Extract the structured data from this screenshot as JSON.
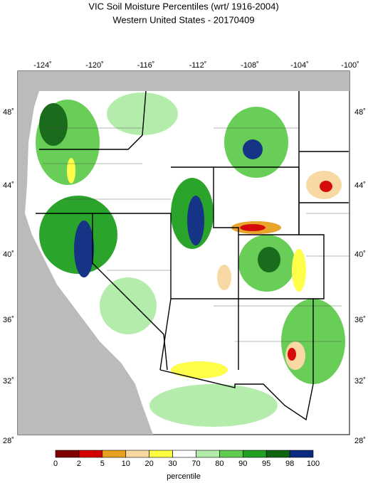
{
  "header": {
    "title": "VIC Soil Moisture Percentiles (wrt/ 1916-2004)",
    "subtitle": "Western United States - 20170409"
  },
  "map": {
    "lon_labels": [
      "-124˚",
      "-120˚",
      "-116˚",
      "-112˚",
      "-108˚",
      "-104˚",
      "-100˚"
    ],
    "lat_labels": [
      "48˚",
      "44˚",
      "40˚",
      "36˚",
      "32˚",
      "28˚"
    ]
  },
  "legend": {
    "ticks": [
      "0",
      "2",
      "5",
      "10",
      "20",
      "30",
      "70",
      "80",
      "90",
      "95",
      "98",
      "100"
    ],
    "colors": [
      "#800000",
      "#d40000",
      "#e8a020",
      "#f8d8a0",
      "#ffff40",
      "#ffffff",
      "#b0eca8",
      "#60cc50",
      "#20a020",
      "#0e6410",
      "#0a2a80"
    ],
    "label": "percentile"
  }
}
